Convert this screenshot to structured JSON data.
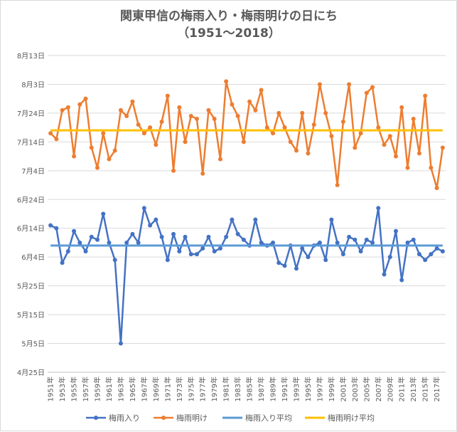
{
  "chart_data": {
    "type": "line",
    "title": "関東甲信の梅雨入り・梅雨明けの日にち",
    "subtitle": "（1951～2018）",
    "x_categories": [
      "1951年",
      "1952年",
      "1953年",
      "1954年",
      "1955年",
      "1956年",
      "1957年",
      "1958年",
      "1959年",
      "1960年",
      "1961年",
      "1962年",
      "1963年",
      "1964年",
      "1965年",
      "1966年",
      "1967年",
      "1968年",
      "1969年",
      "1970年",
      "1971年",
      "1972年",
      "1973年",
      "1974年",
      "1975年",
      "1976年",
      "1977年",
      "1978年",
      "1979年",
      "1980年",
      "1981年",
      "1982年",
      "1983年",
      "1984年",
      "1985年",
      "1986年",
      "1987年",
      "1988年",
      "1989年",
      "1990年",
      "1991年",
      "1992年",
      "1993年",
      "1994年",
      "1995年",
      "1996年",
      "1997年",
      "1998年",
      "1999年",
      "2000年",
      "2001年",
      "2002年",
      "2003年",
      "2004年",
      "2005年",
      "2006年",
      "2007年",
      "2008年",
      "2009年",
      "2010年",
      "2011年",
      "2012年",
      "2013年",
      "2014年",
      "2015年",
      "2016年",
      "2017年",
      "2018年"
    ],
    "x_tick_labels": [
      "1951年",
      "1953年",
      "1955年",
      "1957年",
      "1959年",
      "1961年",
      "1963年",
      "1965年",
      "1967年",
      "1969年",
      "1971年",
      "1973年",
      "1975年",
      "1977年",
      "1979年",
      "1981年",
      "1983年",
      "1985年",
      "1987年",
      "1989年",
      "1991年",
      "1993年",
      "1995年",
      "1997年",
      "1999年",
      "2001年",
      "2003年",
      "2005年",
      "2007年",
      "2009年",
      "2011年",
      "2013年",
      "2015年",
      "2017年"
    ],
    "y_tick_labels": [
      "8月13日",
      "8月3日",
      "7月24日",
      "7月14日",
      "7月4日",
      "6月24日",
      "6月14日",
      "6月4日",
      "5月25日",
      "5月15日",
      "5月5日",
      "4月25日"
    ],
    "y_unit": "day of year (Jan 1 = 1)",
    "ylim": [
      115,
      225
    ],
    "y_ticks": [
      225,
      215,
      205,
      195,
      185,
      175,
      165,
      155,
      145,
      135,
      125,
      115
    ],
    "series": [
      {
        "name": "梅雨入り",
        "color": "#4472c4",
        "marker": true,
        "values": [
          166,
          165,
          153,
          157,
          164,
          160,
          157,
          162,
          161,
          170,
          160,
          154,
          125,
          160,
          163,
          160,
          172,
          166,
          168,
          162,
          154,
          163,
          157,
          162,
          156,
          156,
          158,
          162,
          157,
          158,
          162,
          168,
          163,
          161,
          159,
          168,
          160,
          159,
          160,
          153,
          152,
          159,
          151,
          158,
          155,
          159,
          160,
          154,
          168,
          160,
          156,
          162,
          161,
          157,
          161,
          160,
          172,
          149,
          155,
          164,
          147,
          160,
          161,
          156,
          154,
          156,
          158,
          157
        ]
      },
      {
        "name": "梅雨明け",
        "color": "#ed7d31",
        "marker": true,
        "values": [
          198,
          196,
          206,
          207,
          190,
          208,
          210,
          193,
          186,
          198,
          189,
          192,
          206,
          204,
          209,
          201,
          198,
          200,
          194,
          202,
          211,
          185,
          207,
          195,
          204,
          203,
          184,
          206,
          203,
          189,
          216,
          208,
          204,
          195,
          209,
          206,
          213,
          200,
          198,
          205,
          200,
          195,
          192,
          205,
          191,
          201,
          215,
          205,
          197,
          180,
          202,
          215,
          193,
          198,
          212,
          214,
          200,
          194,
          197,
          190,
          207,
          186,
          203,
          191,
          211,
          186,
          179,
          193
        ]
      },
      {
        "name": "梅雨入り平均",
        "color": "#5b9bd5",
        "marker": false,
        "constant": 159
      },
      {
        "name": "梅雨明け平均",
        "color": "#ffc000",
        "marker": false,
        "constant": 199
      }
    ],
    "grid": true,
    "legend_position": "bottom"
  }
}
